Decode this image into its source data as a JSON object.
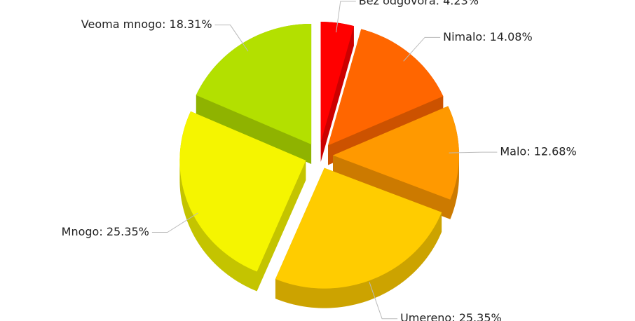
{
  "chart_data": {
    "type": "pie",
    "values": [
      4.23,
      14.08,
      12.68,
      25.35,
      25.35,
      18.31
    ],
    "value_labels": [
      "Bez odgovora: 4.23%",
      "Nimalo: 14.08%",
      "Malo: 12.68%",
      "Umereno: 25.35%",
      "Mnogo: 25.35%",
      "Veoma mnogo: 18.31%"
    ],
    "colors": [
      "#ff0000",
      "#ff6600",
      "#ff9900",
      "#ffcc00",
      "#f5f500",
      "#b3e000"
    ]
  }
}
